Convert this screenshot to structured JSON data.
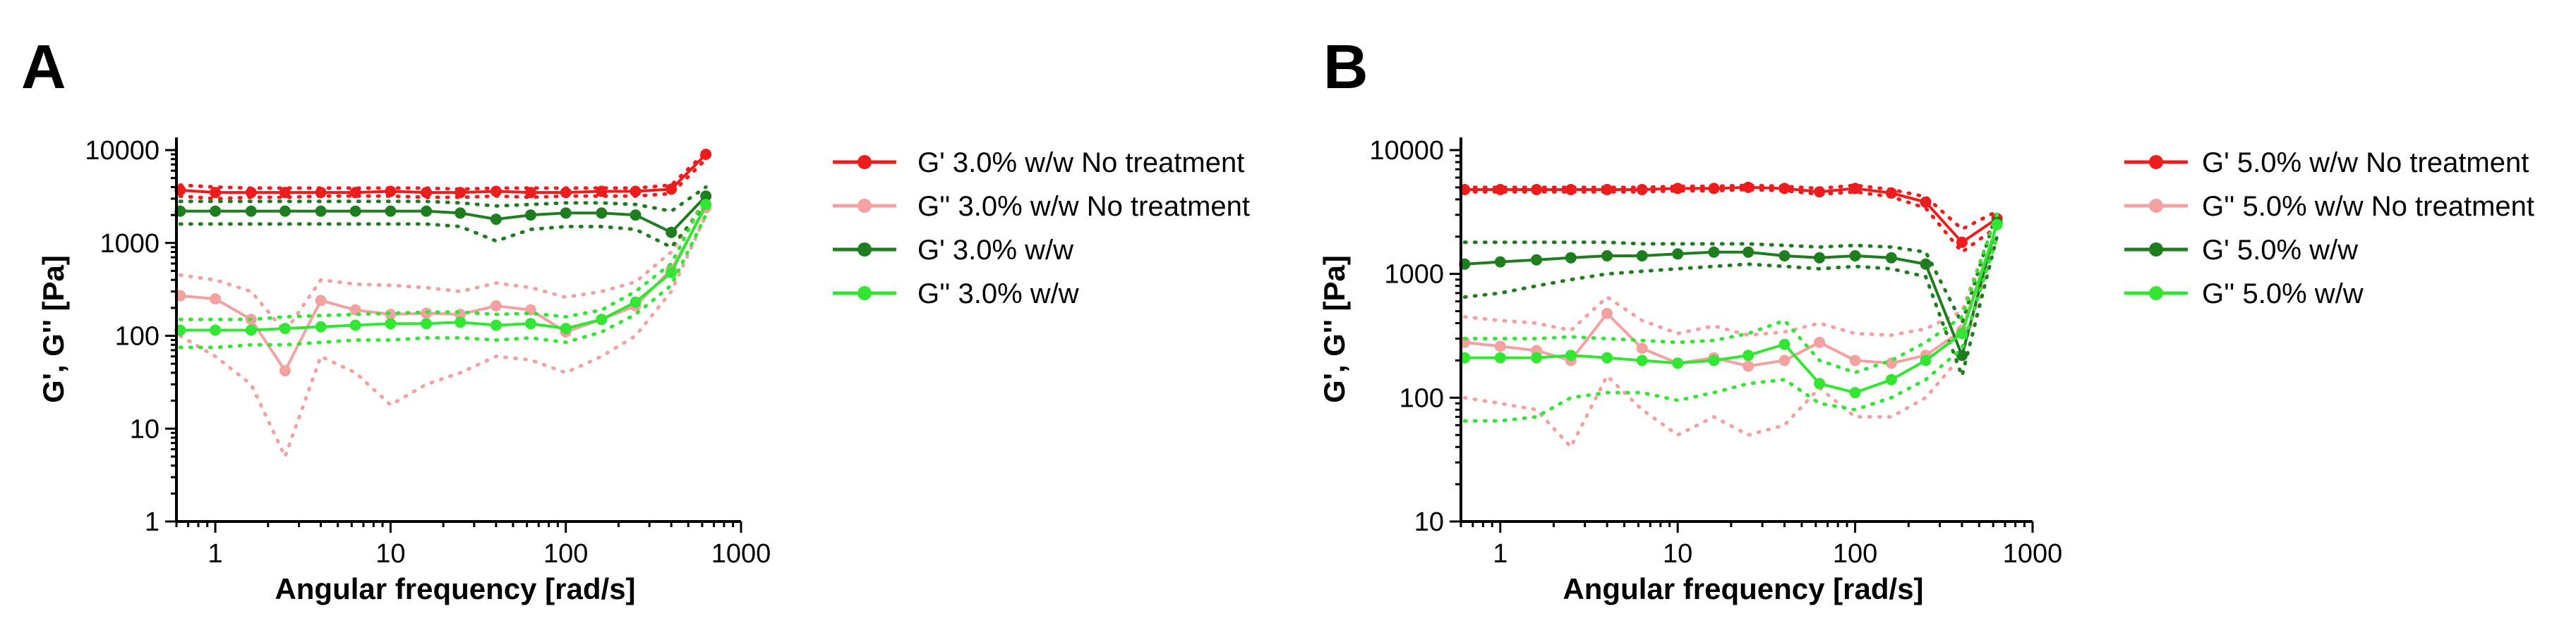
{
  "colors": {
    "red": "#ee1c1c",
    "pink": "#f4a1a1",
    "darkgreen": "#1e7d1e",
    "lightgreen": "#33e633",
    "axis": "#000000"
  },
  "chart_data": [
    {
      "panel": "A",
      "type": "line",
      "x_scale": "log",
      "y_scale": "log",
      "xlabel": "Angular frequency [rad/s]",
      "ylabel": "G', G'' [Pa]",
      "xlim": [
        0.6,
        1000
      ],
      "ylim": [
        1,
        10000
      ],
      "x_ticks": [
        1,
        10,
        100,
        1000
      ],
      "x_tick_labels": [
        "1",
        "10",
        "100",
        "1000"
      ],
      "y_ticks": [
        1,
        10,
        100,
        1000,
        10000
      ],
      "y_tick_labels": [
        "1",
        "10",
        "100",
        "1000",
        "10000"
      ],
      "legend_position": "right",
      "series": [
        {
          "name": "G' 3.0% w/w No treatment",
          "color": "red",
          "x": [
            0.63,
            1.0,
            1.6,
            2.5,
            4.0,
            6.3,
            10,
            16,
            25,
            40,
            63,
            100,
            160,
            250,
            400,
            630
          ],
          "values": [
            3700,
            3500,
            3500,
            3500,
            3500,
            3500,
            3600,
            3500,
            3500,
            3600,
            3500,
            3500,
            3600,
            3600,
            3800,
            9000
          ],
          "upper": [
            4200,
            4000,
            3900,
            3900,
            3900,
            3900,
            3900,
            3900,
            3800,
            3900,
            3900,
            3900,
            3900,
            3900,
            4200,
            9500
          ],
          "lower": [
            3200,
            3000,
            3100,
            3100,
            3200,
            3200,
            3200,
            3100,
            3100,
            3200,
            3100,
            3200,
            3200,
            3200,
            3400,
            8000
          ]
        },
        {
          "name": "G'' 3.0% w/w No treatment",
          "color": "pink",
          "x": [
            0.63,
            1.0,
            1.6,
            2.5,
            4.0,
            6.3,
            10,
            16,
            25,
            40,
            63,
            100,
            160,
            250,
            400,
            630
          ],
          "values": [
            270,
            250,
            150,
            42,
            240,
            190,
            170,
            175,
            170,
            210,
            190,
            110,
            150,
            210,
            520,
            2400
          ],
          "upper": [
            450,
            400,
            300,
            110,
            400,
            360,
            350,
            330,
            300,
            370,
            330,
            260,
            300,
            380,
            800,
            3000
          ],
          "lower": [
            100,
            60,
            30,
            5,
            60,
            40,
            18,
            30,
            40,
            60,
            55,
            40,
            60,
            100,
            300,
            2000
          ]
        },
        {
          "name": "G' 3.0% w/w",
          "color": "darkgreen",
          "x": [
            0.63,
            1.0,
            1.6,
            2.5,
            4.0,
            6.3,
            10,
            16,
            25,
            40,
            63,
            100,
            160,
            250,
            400,
            630
          ],
          "values": [
            2200,
            2200,
            2200,
            2200,
            2200,
            2200,
            2200,
            2200,
            2100,
            1800,
            2000,
            2100,
            2100,
            2000,
            1300,
            3200
          ],
          "upper": [
            2800,
            2800,
            2800,
            2800,
            2800,
            2800,
            2800,
            2800,
            2700,
            2500,
            2600,
            2700,
            2700,
            2600,
            2200,
            4000
          ],
          "lower": [
            1600,
            1600,
            1600,
            1600,
            1600,
            1600,
            1600,
            1600,
            1500,
            1050,
            1400,
            1500,
            1500,
            1400,
            900,
            2600
          ]
        },
        {
          "name": "G'' 3.0% w/w",
          "color": "lightgreen",
          "x": [
            0.63,
            1.0,
            1.6,
            2.5,
            4.0,
            6.3,
            10,
            16,
            25,
            40,
            63,
            100,
            160,
            250,
            400,
            630
          ],
          "values": [
            115,
            115,
            115,
            120,
            125,
            130,
            135,
            135,
            140,
            130,
            135,
            120,
            150,
            230,
            480,
            2600
          ],
          "upper": [
            150,
            150,
            150,
            160,
            165,
            170,
            175,
            180,
            180,
            170,
            175,
            160,
            190,
            300,
            600,
            3200
          ],
          "lower": [
            75,
            75,
            80,
            80,
            85,
            90,
            90,
            95,
            95,
            90,
            95,
            85,
            110,
            170,
            350,
            2000
          ]
        }
      ]
    },
    {
      "panel": "B",
      "type": "line",
      "x_scale": "log",
      "y_scale": "log",
      "xlabel": "Angular frequency [rad/s]",
      "ylabel": "G', G'' [Pa]",
      "xlim": [
        0.6,
        1000
      ],
      "ylim": [
        10,
        10000
      ],
      "x_ticks": [
        1,
        10,
        100,
        1000
      ],
      "x_tick_labels": [
        "1",
        "10",
        "100",
        "1000"
      ],
      "y_ticks": [
        10,
        100,
        1000,
        10000
      ],
      "y_tick_labels": [
        "10",
        "100",
        "1000",
        "10000"
      ],
      "legend_position": "right",
      "series": [
        {
          "name": "G' 5.0% w/w No treatment",
          "color": "red",
          "x": [
            0.63,
            1.0,
            1.6,
            2.5,
            4.0,
            6.3,
            10,
            16,
            25,
            40,
            63,
            100,
            160,
            250,
            400,
            630
          ],
          "values": [
            4800,
            4800,
            4800,
            4800,
            4800,
            4800,
            4900,
            4900,
            5000,
            4900,
            4600,
            4900,
            4500,
            3800,
            1800,
            2800
          ],
          "upper": [
            5000,
            5000,
            5000,
            5000,
            5000,
            5000,
            5100,
            5100,
            5200,
            5100,
            4900,
            5200,
            4800,
            4200,
            2300,
            3200
          ],
          "lower": [
            4600,
            4600,
            4600,
            4600,
            4600,
            4600,
            4700,
            4700,
            4800,
            4700,
            4400,
            4600,
            4200,
            3400,
            1500,
            2400
          ]
        },
        {
          "name": "G'' 5.0% w/w No treatment",
          "color": "pink",
          "x": [
            0.63,
            1.0,
            1.6,
            2.5,
            4.0,
            6.3,
            10,
            16,
            25,
            40,
            63,
            100,
            160,
            250,
            400,
            630
          ],
          "values": [
            280,
            260,
            240,
            200,
            480,
            250,
            190,
            210,
            180,
            200,
            280,
            200,
            190,
            220,
            350,
            2500
          ],
          "upper": [
            450,
            420,
            400,
            350,
            650,
            420,
            330,
            380,
            320,
            340,
            400,
            330,
            320,
            360,
            500,
            3000
          ],
          "lower": [
            100,
            90,
            80,
            40,
            150,
            80,
            50,
            70,
            50,
            60,
            120,
            70,
            70,
            100,
            220,
            2000
          ]
        },
        {
          "name": "G' 5.0% w/w",
          "color": "darkgreen",
          "x": [
            0.63,
            1.0,
            1.6,
            2.5,
            4.0,
            6.3,
            10,
            16,
            25,
            40,
            63,
            100,
            160,
            250,
            400,
            630
          ],
          "values": [
            1200,
            1250,
            1300,
            1350,
            1400,
            1400,
            1450,
            1500,
            1500,
            1400,
            1350,
            1400,
            1350,
            1200,
            220,
            2600
          ],
          "upper": [
            1800,
            1800,
            1800,
            1800,
            1800,
            1750,
            1750,
            1750,
            1750,
            1700,
            1650,
            1700,
            1650,
            1500,
            400,
            3200
          ],
          "lower": [
            650,
            700,
            800,
            900,
            1000,
            1050,
            1100,
            1150,
            1200,
            1150,
            1100,
            1150,
            1100,
            950,
            150,
            2000
          ]
        },
        {
          "name": "G'' 5.0% w/w",
          "color": "lightgreen",
          "x": [
            0.63,
            1.0,
            1.6,
            2.5,
            4.0,
            6.3,
            10,
            16,
            25,
            40,
            63,
            100,
            160,
            250,
            400,
            630
          ],
          "values": [
            210,
            210,
            210,
            220,
            210,
            200,
            190,
            200,
            220,
            270,
            130,
            110,
            140,
            200,
            330,
            2500
          ],
          "upper": [
            300,
            300,
            300,
            310,
            300,
            290,
            280,
            290,
            330,
            420,
            200,
            160,
            200,
            280,
            450,
            3100
          ],
          "lower": [
            65,
            65,
            70,
            100,
            110,
            110,
            95,
            110,
            130,
            140,
            90,
            80,
            100,
            140,
            250,
            2000
          ]
        }
      ]
    }
  ]
}
